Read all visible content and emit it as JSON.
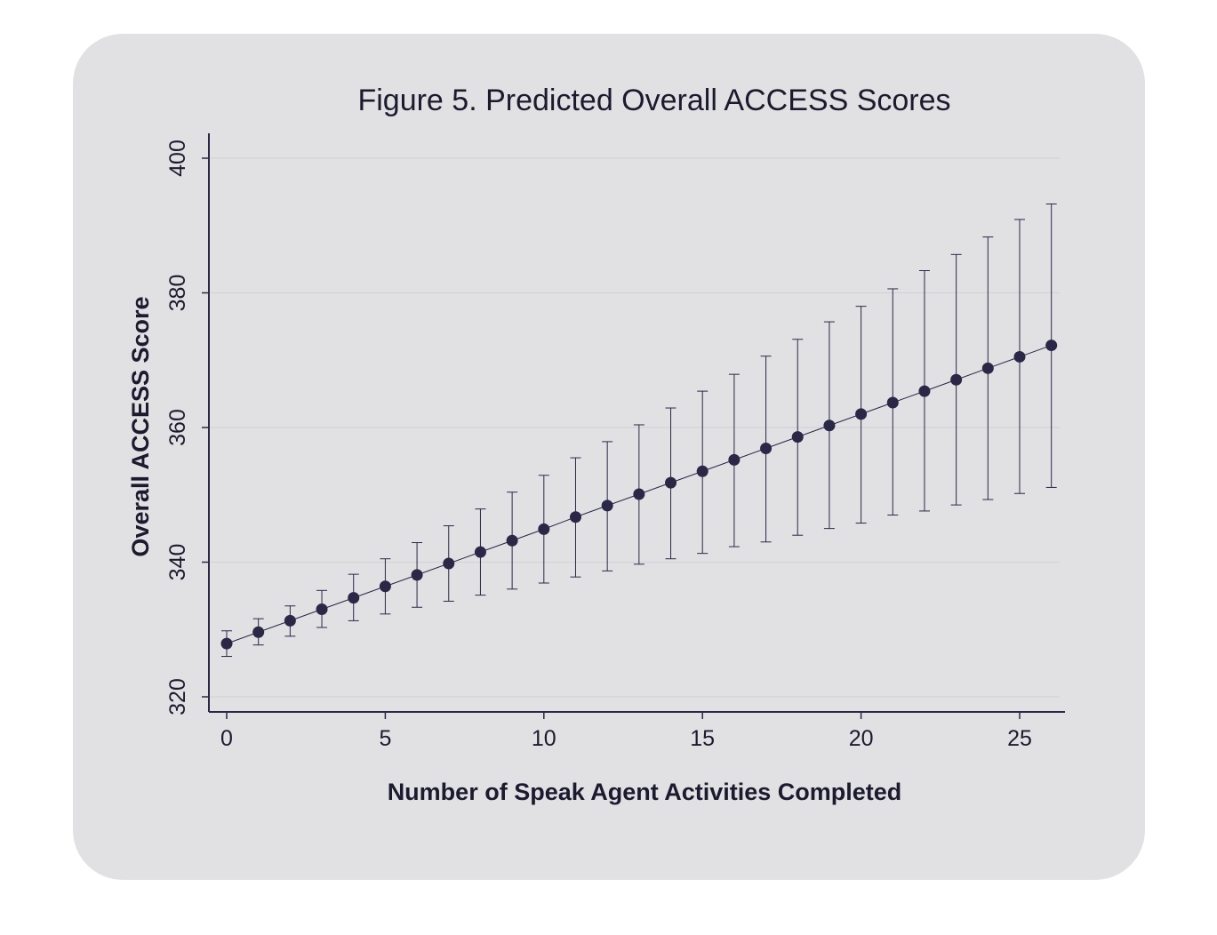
{
  "chart_data": {
    "type": "scatter",
    "title": "Figure 5. Predicted Overall ACCESS Scores",
    "xlabel": "Number of Speak Agent Activities Completed",
    "ylabel": "Overall ACCESS Score",
    "xlim": [
      -1,
      26.5
    ],
    "ylim": [
      318,
      403
    ],
    "x_ticks": [
      0,
      5,
      10,
      15,
      20,
      25
    ],
    "y_ticks": [
      320,
      340,
      360,
      380,
      400
    ],
    "grid": true,
    "series": [
      {
        "x": [
          0,
          1,
          2,
          3,
          4,
          5,
          6,
          7,
          8,
          9,
          10,
          11,
          12,
          13,
          14,
          15,
          16,
          17,
          18,
          19,
          20,
          21,
          22,
          23,
          24,
          25,
          26
        ],
        "y": [
          327.9,
          329.6,
          331.3,
          333.0,
          334.7,
          336.4,
          338.1,
          339.8,
          341.5,
          343.2,
          344.9,
          346.7,
          348.4,
          350.1,
          351.8,
          353.5,
          355.2,
          356.9,
          358.6,
          360.3,
          362.0,
          363.7,
          365.4,
          367.1,
          368.8,
          370.5,
          372.2
        ],
        "lower": [
          326.0,
          327.7,
          329.0,
          330.3,
          331.3,
          332.3,
          333.3,
          334.2,
          335.1,
          336.0,
          336.9,
          337.8,
          338.7,
          339.7,
          340.5,
          341.3,
          342.3,
          343.0,
          344.0,
          345.0,
          345.8,
          347.0,
          347.6,
          348.5,
          349.3,
          350.2,
          351.1
        ],
        "upper": [
          329.8,
          331.6,
          333.5,
          335.8,
          338.2,
          340.5,
          342.9,
          345.4,
          347.9,
          350.4,
          352.9,
          355.5,
          357.9,
          360.4,
          362.9,
          365.4,
          367.9,
          370.6,
          373.1,
          375.7,
          378.0,
          380.6,
          383.3,
          385.7,
          388.3,
          390.9,
          393.2
        ]
      }
    ],
    "colors": {
      "marker": "#2a2747",
      "line": "#2a2747",
      "grid": "#d0d0d5",
      "card": "#e1e1e4"
    }
  }
}
